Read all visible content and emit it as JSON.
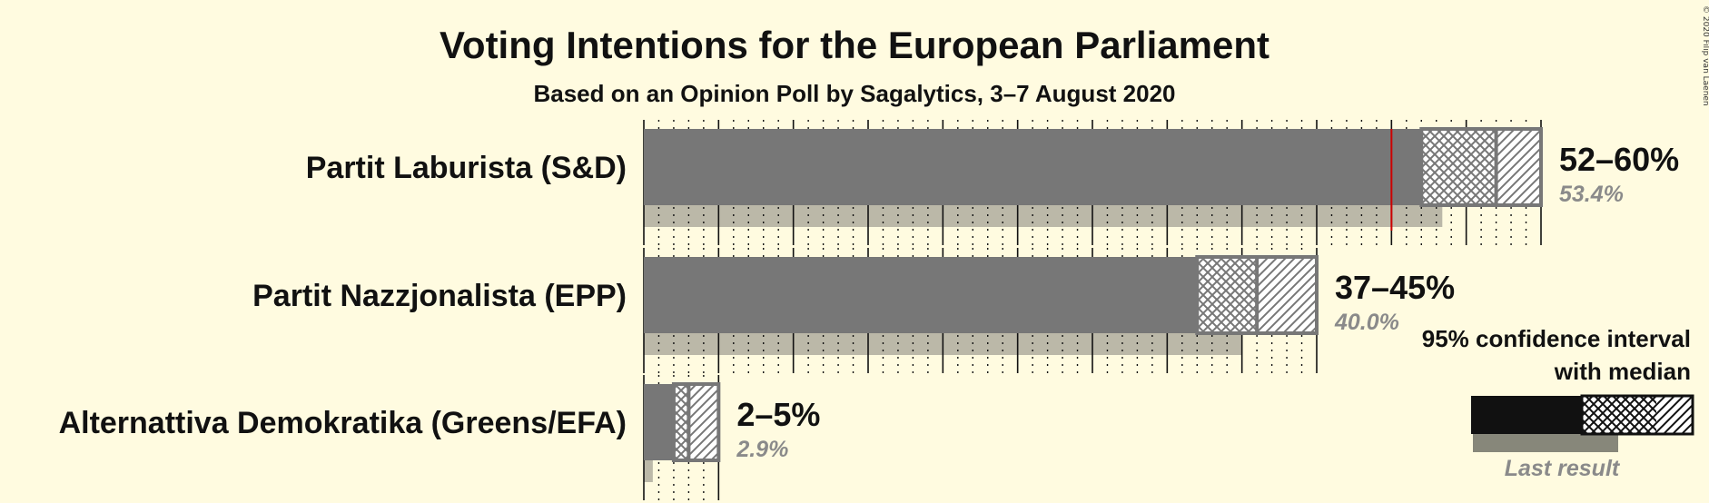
{
  "chart_data": {
    "type": "bar",
    "title": "Voting Intentions for the European Parliament",
    "subtitle": "Based on an Opinion Poll by Sagalytics, 3–7 August 2020",
    "copyright": "© 2020 Filip van Laenen",
    "categories": [
      "Partit Laburista (S&D)",
      "Partit Nazzjonalista (EPP)",
      "Alternattiva Demokratika (Greens/EFA)"
    ],
    "series": [
      {
        "label": "Partit Laburista (S&D)",
        "ci95": [
          52,
          60
        ],
        "ci80": [
          50,
          57
        ],
        "last_result": 53.4,
        "range_label": "52–60%",
        "median_label": "53.4%"
      },
      {
        "label": "Partit Nazzjonalista (EPP)",
        "ci95": [
          37,
          45
        ],
        "ci80": [
          37,
          41
        ],
        "last_result": 40.0,
        "range_label": "37–45%",
        "median_label": "40.0%"
      },
      {
        "label": "Alternattiva Demokratika (Greens/EFA)",
        "ci95": [
          2,
          5
        ],
        "ci80": [
          2,
          3
        ],
        "last_result": 0.6,
        "range_label": "2–5%",
        "median_label": "2.9%"
      }
    ],
    "threshold_marker": 50,
    "xlim": [
      0,
      60
    ],
    "grid": true,
    "legend": {
      "line1": "95% confidence interval",
      "line2": "with median",
      "last_result_label": "Last result",
      "placement": "bottom-right"
    }
  },
  "colors": {
    "background": "#fffbe0",
    "bar": "#777777",
    "bar_outline": "#777777",
    "last_result": "#bbb8a8",
    "threshold_line": "#cc0000",
    "legend_solid": "#111111",
    "legend_last": "#87877a"
  }
}
